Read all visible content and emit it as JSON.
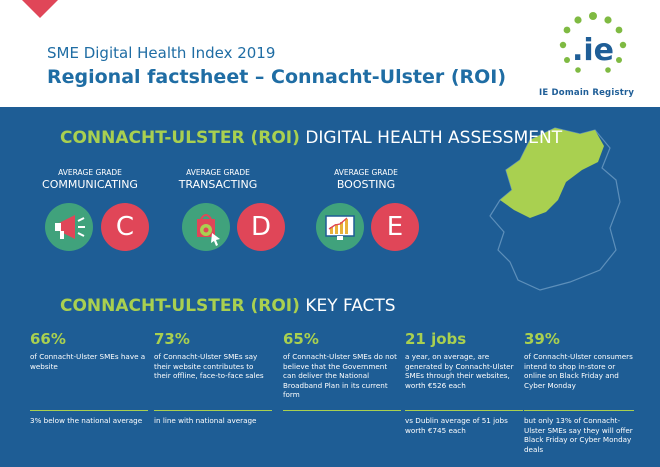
{
  "header": {
    "subtitle": "SME Digital Health Index 2019",
    "title": "Regional factsheet – Connacht-Ulster (ROI)"
  },
  "logo": {
    "mark": ".ie",
    "caption": "IE Domain Registry"
  },
  "assessment": {
    "region": "CONNACHT-ULSTER (ROI)",
    "label": "DIGITAL HEALTH ASSESSMENT",
    "grades": [
      {
        "caption": "AVERAGE GRADE",
        "name": "COMMUNICATING",
        "grade": "C",
        "icon": "megaphone-icon"
      },
      {
        "caption": "AVERAGE GRADE",
        "name": "TRANSACTING",
        "grade": "D",
        "icon": "shopping-bag-icon"
      },
      {
        "caption": "AVERAGE GRADE",
        "name": "BOOSTING",
        "grade": "E",
        "icon": "growth-chart-icon"
      }
    ]
  },
  "keyfacts": {
    "region": "CONNACHT-ULSTER (ROI)",
    "label": "KEY FACTS",
    "items": [
      {
        "big": "66%",
        "desc": "of Connacht-Ulster SMEs have a website",
        "note": "3% below the national average"
      },
      {
        "big": "73%",
        "desc": "of Connacht-Ulster SMEs say their website contributes to their offline, face-to-face sales",
        "note": "in line with national average"
      },
      {
        "big": "65%",
        "desc": "of Connacht-Ulster SMEs do not believe that the Government can deliver the National Broadband Plan in its current form",
        "note": ""
      },
      {
        "big": "21 jobs",
        "desc": "a year, on average, are generated by Connacht-Ulster SMEs through their websites, worth €526 each",
        "note": "vs Dublin average of 51 jobs worth €745 each"
      },
      {
        "big": "39%",
        "desc": "of Connacht-Ulster consumers intend to shop in-store or online on Black Friday and Cyber Monday",
        "note": "but only 13% of Connacht-Ulster SMEs say they will offer Black Friday or Cyber Monday deals"
      }
    ]
  },
  "colors": {
    "panel": "#1e5d95",
    "accent_green": "#a9d050",
    "grade_red": "#e04658",
    "icon_green": "#40a27c",
    "brand_blue": "#1f6da4"
  }
}
